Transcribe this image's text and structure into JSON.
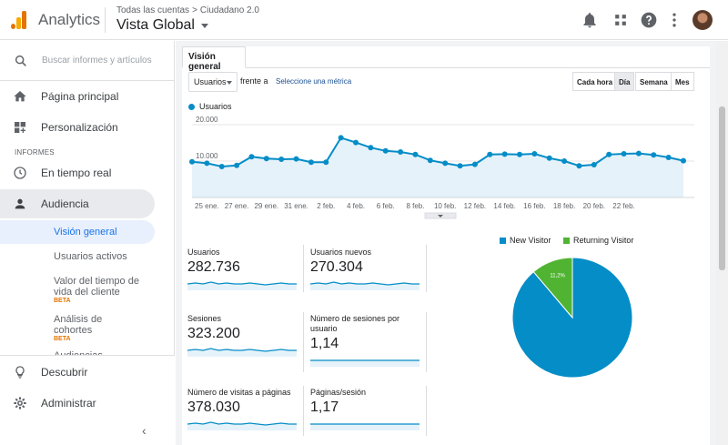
{
  "header": {
    "app_title": "Analytics",
    "breadcrumb_account": "Todas las cuentas",
    "breadcrumb_property": "Ciudadano 2.0",
    "breadcrumb_sep": ">",
    "view_name": "Vista Global",
    "icons": [
      "bell-icon",
      "apps-grid-icon",
      "help-icon",
      "more-vert-icon"
    ]
  },
  "sidebar": {
    "search_placeholder": "Buscar informes y artículos",
    "home": "Página principal",
    "customize": "Personalización",
    "section_reports": "INFORMES",
    "realtime": "En tiempo real",
    "audience": "Audiencia",
    "sub_overview": "Visión general",
    "sub_active_users": "Usuarios activos",
    "sub_ltv": "Valor del tiempo de vida del cliente",
    "sub_cohorts": "Análisis de cohortes",
    "beta": "BETA",
    "sub_audiences": "Audiencias",
    "discover": "Descubrir",
    "admin": "Administrar",
    "collapse": "‹"
  },
  "main": {
    "tab": "Visión general",
    "metric_select": "Usuarios",
    "vs_label": "frente a",
    "pick_metric": "Seleccione una métrica",
    "granularity": [
      "Cada hora",
      "Día",
      "Semana",
      "Mes"
    ],
    "granularity_selected": "Día"
  },
  "chart_data": [
    {
      "type": "area",
      "series": [
        {
          "name": "Usuarios",
          "values": [
            9800,
            9400,
            8500,
            8800,
            11200,
            10700,
            10500,
            10600,
            9700,
            9700,
            16400,
            15100,
            13700,
            12800,
            12500,
            11800,
            10200,
            9400,
            8700,
            9100,
            11800,
            11900,
            11800,
            12000,
            10800,
            10000,
            8700,
            9000,
            11800,
            12000,
            12100,
            11700,
            11000,
            10100
          ]
        }
      ],
      "x_tick_labels": [
        "25 ene.",
        "27 ene.",
        "29 ene.",
        "31 ene.",
        "2 feb.",
        "4 feb.",
        "6 feb.",
        "8 feb.",
        "10 feb.",
        "12 feb.",
        "14 feb.",
        "16 feb.",
        "18 feb.",
        "20 feb.",
        "22 feb."
      ],
      "y_tick_labels": [
        "20.000",
        "10.000"
      ],
      "ylim": [
        0,
        22000
      ],
      "color": "#058dc7"
    },
    {
      "type": "pie",
      "categories": [
        "New Visitor",
        "Returning Visitor"
      ],
      "values": [
        88.8,
        11.2
      ],
      "labels": [
        "88,8%",
        "11,2%"
      ],
      "colors": [
        "#058dc7",
        "#50b432"
      ]
    }
  ],
  "metrics": [
    {
      "title": "Usuarios",
      "value": "282.736",
      "spark": [
        5,
        6,
        5,
        7,
        5,
        6,
        5,
        5,
        6,
        5,
        4,
        5,
        6,
        5,
        5
      ]
    },
    {
      "title": "Usuarios nuevos",
      "value": "270.304",
      "spark": [
        5,
        6,
        5,
        7,
        5,
        6,
        5,
        5,
        6,
        5,
        4,
        5,
        6,
        5,
        5
      ]
    },
    {
      "title": "Sesiones",
      "value": "323.200",
      "spark": [
        5,
        6,
        5,
        7,
        5,
        6,
        5,
        5,
        6,
        5,
        4,
        5,
        6,
        5,
        5
      ]
    },
    {
      "title": "Número de sesiones por usuario",
      "value": "1,14",
      "spark": [
        5,
        5,
        5,
        5,
        5,
        5,
        5,
        5,
        5,
        5,
        5,
        5,
        5,
        5,
        5
      ]
    },
    {
      "title": "Número de visitas a páginas",
      "value": "378.030",
      "spark": [
        5,
        6,
        5,
        7,
        5,
        6,
        5,
        5,
        6,
        5,
        4,
        5,
        6,
        5,
        5
      ]
    },
    {
      "title": "Páginas/sesión",
      "value": "1,17",
      "spark": [
        5,
        5,
        5,
        5,
        5,
        5,
        5,
        5,
        5,
        5,
        5,
        5,
        5,
        5,
        5
      ]
    }
  ]
}
